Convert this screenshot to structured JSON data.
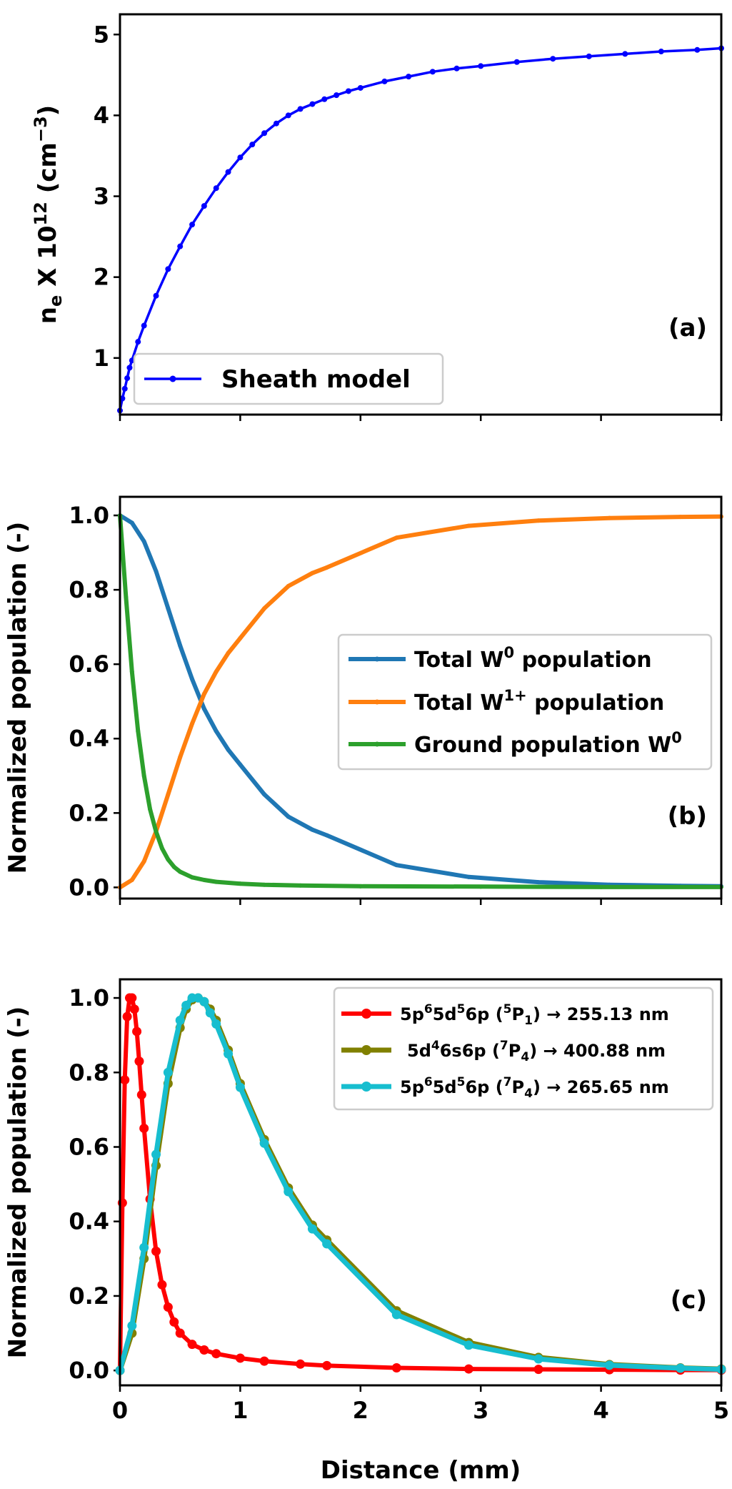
{
  "chart_data": [
    {
      "id": "a",
      "type": "line",
      "panel_label": "(a)",
      "ylabel_main": "n",
      "ylabel_main_sub": "e",
      "ylabel_mid": " X 10",
      "ylabel_mid_sup": "12",
      "ylabel_unit": " (cm",
      "ylabel_unit_sup": "−3",
      "ylabel_close": ")",
      "xlim": [
        0,
        5
      ],
      "ylim": [
        0.3,
        5.25
      ],
      "xticks": [
        0,
        1,
        2,
        3,
        4,
        5
      ],
      "yticks": [
        1,
        2,
        3,
        4,
        5
      ],
      "ytick_labels": [
        "1",
        "2",
        "3",
        "4",
        "5"
      ],
      "show_xtick_labels": false,
      "legend_position": "lower-left",
      "series": [
        {
          "name": "Sheath model",
          "color": "#0000ff",
          "x": [
            0,
            0.02,
            0.04,
            0.06,
            0.08,
            0.1,
            0.15,
            0.2,
            0.3,
            0.4,
            0.5,
            0.6,
            0.7,
            0.8,
            0.9,
            1.0,
            1.1,
            1.2,
            1.3,
            1.4,
            1.5,
            1.6,
            1.7,
            1.8,
            1.9,
            2.0,
            2.2,
            2.4,
            2.6,
            2.8,
            3.0,
            3.3,
            3.6,
            3.9,
            4.2,
            4.5,
            4.8,
            5.0
          ],
          "y": [
            0.35,
            0.5,
            0.62,
            0.75,
            0.88,
            0.97,
            1.2,
            1.4,
            1.77,
            2.1,
            2.38,
            2.65,
            2.88,
            3.1,
            3.3,
            3.48,
            3.64,
            3.78,
            3.9,
            4.0,
            4.08,
            4.14,
            4.2,
            4.25,
            4.3,
            4.34,
            4.42,
            4.48,
            4.54,
            4.58,
            4.61,
            4.66,
            4.7,
            4.73,
            4.76,
            4.79,
            4.81,
            4.83
          ]
        }
      ]
    },
    {
      "id": "b",
      "type": "line",
      "panel_label": "(b)",
      "ylabel": "Normalized population (-)",
      "xlim": [
        0,
        5
      ],
      "ylim": [
        -0.03,
        1.05
      ],
      "xticks": [
        0,
        1,
        2,
        3,
        4,
        5
      ],
      "yticks": [
        0.0,
        0.2,
        0.4,
        0.6,
        0.8,
        1.0
      ],
      "ytick_labels": [
        "0.0",
        "0.2",
        "0.4",
        "0.6",
        "0.8",
        "1.0"
      ],
      "show_xtick_labels": false,
      "legend_position": "center-right",
      "series": [
        {
          "name_main": "Total W",
          "name_sup": "0",
          "name_after": " population",
          "color": "#1f77b4",
          "x": [
            0,
            0.1,
            0.2,
            0.3,
            0.4,
            0.5,
            0.6,
            0.7,
            0.8,
            0.9,
            1.0,
            1.2,
            1.4,
            1.6,
            1.72,
            2.3,
            2.9,
            3.48,
            4.07,
            4.66,
            5.0
          ],
          "y": [
            1.0,
            0.98,
            0.93,
            0.85,
            0.75,
            0.65,
            0.56,
            0.48,
            0.42,
            0.37,
            0.33,
            0.25,
            0.19,
            0.155,
            0.14,
            0.06,
            0.028,
            0.014,
            0.007,
            0.004,
            0.003
          ]
        },
        {
          "name_main": "Total W",
          "name_sup": "1+",
          "name_after": " population",
          "color": "#ff7f0e",
          "x": [
            0,
            0.1,
            0.2,
            0.3,
            0.4,
            0.5,
            0.6,
            0.7,
            0.8,
            0.9,
            1.0,
            1.2,
            1.4,
            1.6,
            1.72,
            2.3,
            2.9,
            3.48,
            4.07,
            4.66,
            5.0
          ],
          "y": [
            0.0,
            0.02,
            0.07,
            0.15,
            0.25,
            0.35,
            0.44,
            0.52,
            0.58,
            0.63,
            0.67,
            0.75,
            0.81,
            0.845,
            0.86,
            0.94,
            0.972,
            0.986,
            0.993,
            0.996,
            0.997
          ]
        },
        {
          "name_main": "Ground population W",
          "name_sup": "0",
          "name_after": "",
          "color": "#2ca02c",
          "x": [
            0,
            0.05,
            0.1,
            0.15,
            0.2,
            0.25,
            0.3,
            0.35,
            0.4,
            0.45,
            0.5,
            0.6,
            0.7,
            0.8,
            1.0,
            1.2,
            1.5,
            2.0,
            3.0,
            4.0,
            5.0
          ],
          "y": [
            1.0,
            0.78,
            0.58,
            0.42,
            0.3,
            0.21,
            0.15,
            0.105,
            0.075,
            0.055,
            0.042,
            0.027,
            0.02,
            0.015,
            0.01,
            0.007,
            0.005,
            0.003,
            0.002,
            0.001,
            0.001
          ]
        }
      ]
    },
    {
      "id": "c",
      "type": "line",
      "panel_label": "(c)",
      "ylabel": "Normalized population (-)",
      "xlabel": "Distance (mm)",
      "xlim": [
        0,
        5
      ],
      "ylim": [
        -0.04,
        1.05
      ],
      "xticks": [
        0,
        1,
        2,
        3,
        4,
        5
      ],
      "xtick_labels": [
        "0",
        "1",
        "2",
        "3",
        "4",
        "5"
      ],
      "yticks": [
        0.0,
        0.2,
        0.4,
        0.6,
        0.8,
        1.0
      ],
      "ytick_labels": [
        "0.0",
        "0.2",
        "0.4",
        "0.6",
        "0.8",
        "1.0"
      ],
      "show_xtick_labels": true,
      "legend_position": "top-right",
      "series": [
        {
          "label_parts": [
            [
              "5p",
              ""
            ],
            [
              "6",
              "sup"
            ],
            [
              "5d",
              ""
            ],
            [
              "5",
              "sup"
            ],
            [
              "6p (",
              ""
            ],
            [
              "5",
              "sup"
            ],
            [
              "P",
              ""
            ],
            [
              "1",
              "sub"
            ],
            [
              ")  →  255.13 nm",
              ""
            ]
          ],
          "color": "#ff0000",
          "x": [
            0,
            0.02,
            0.04,
            0.06,
            0.08,
            0.1,
            0.12,
            0.14,
            0.16,
            0.18,
            0.2,
            0.25,
            0.3,
            0.35,
            0.4,
            0.45,
            0.5,
            0.6,
            0.7,
            0.8,
            1.0,
            1.2,
            1.5,
            1.72,
            2.3,
            2.9,
            3.48,
            4.07,
            4.66,
            5.0
          ],
          "y": [
            0.0,
            0.45,
            0.78,
            0.95,
            1.0,
            1.0,
            0.97,
            0.91,
            0.83,
            0.74,
            0.65,
            0.46,
            0.32,
            0.23,
            0.17,
            0.13,
            0.1,
            0.07,
            0.055,
            0.045,
            0.033,
            0.025,
            0.017,
            0.013,
            0.007,
            0.004,
            0.003,
            0.002,
            0.001,
            0.001
          ]
        },
        {
          "label_parts": [
            [
              "5d",
              ""
            ],
            [
              "4",
              "sup"
            ],
            [
              "6s6p (",
              ""
            ],
            [
              "7",
              "sup"
            ],
            [
              "P",
              ""
            ],
            [
              "4",
              "sub"
            ],
            [
              ")  →  400.88 nm",
              ""
            ]
          ],
          "color": "#808000",
          "x": [
            0,
            0.1,
            0.2,
            0.3,
            0.4,
            0.5,
            0.55,
            0.6,
            0.65,
            0.7,
            0.75,
            0.8,
            0.9,
            1.0,
            1.2,
            1.4,
            1.6,
            1.72,
            2.3,
            2.9,
            3.48,
            4.07,
            4.66,
            5.0
          ],
          "y": [
            0.0,
            0.1,
            0.3,
            0.55,
            0.77,
            0.92,
            0.97,
            0.995,
            1.0,
            0.99,
            0.97,
            0.94,
            0.86,
            0.77,
            0.62,
            0.49,
            0.39,
            0.35,
            0.16,
            0.075,
            0.035,
            0.016,
            0.007,
            0.004
          ]
        },
        {
          "label_parts": [
            [
              "5p",
              ""
            ],
            [
              "6",
              "sup"
            ],
            [
              "5d",
              ""
            ],
            [
              "5",
              "sup"
            ],
            [
              "6p (",
              ""
            ],
            [
              "7",
              "sup"
            ],
            [
              "P",
              ""
            ],
            [
              "4",
              "sub"
            ],
            [
              ")  →  265.65 nm",
              ""
            ]
          ],
          "color": "#17becf",
          "x": [
            0,
            0.1,
            0.2,
            0.3,
            0.4,
            0.5,
            0.55,
            0.6,
            0.65,
            0.7,
            0.75,
            0.8,
            0.9,
            1.0,
            1.2,
            1.4,
            1.6,
            1.72,
            2.3,
            2.9,
            3.48,
            4.07,
            4.66,
            5.0
          ],
          "y": [
            0.0,
            0.12,
            0.33,
            0.58,
            0.8,
            0.94,
            0.98,
            1.0,
            1.0,
            0.99,
            0.96,
            0.93,
            0.85,
            0.76,
            0.61,
            0.48,
            0.38,
            0.34,
            0.15,
            0.068,
            0.031,
            0.014,
            0.006,
            0.003
          ]
        }
      ]
    }
  ]
}
